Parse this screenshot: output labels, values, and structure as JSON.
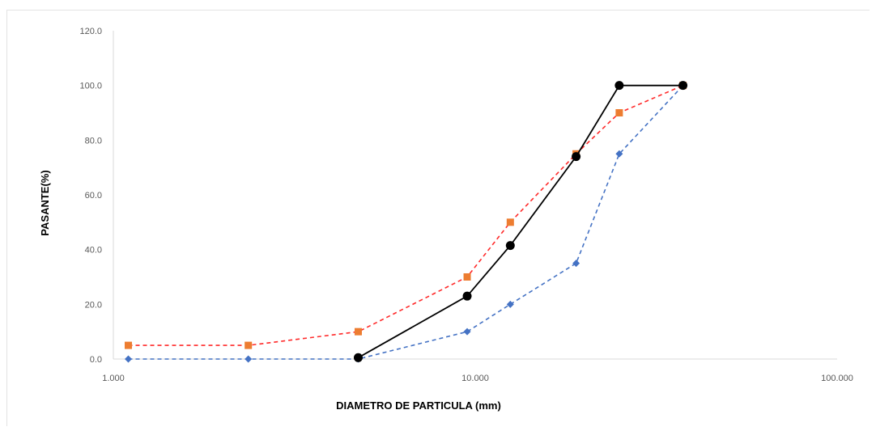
{
  "chart_data": {
    "type": "scatter",
    "title": "",
    "xlabel": "DIAMETRO DE PARTICULA (mm)",
    "ylabel": "PASANTE(%)",
    "xscale": "log",
    "xlim": [
      1.0,
      100.0
    ],
    "ylim": [
      0,
      120
    ],
    "x_ticks": [
      1.0,
      10.0,
      100.0
    ],
    "x_tick_labels": [
      "1.000",
      "10.000",
      "100.000"
    ],
    "y_ticks": [
      0,
      20,
      40,
      60,
      80,
      100,
      120
    ],
    "y_tick_labels": [
      "0.0",
      "20.0",
      "40.0",
      "60.0",
      "80.0",
      "100.0",
      "120.0"
    ],
    "grid": false,
    "legend": "none",
    "series": [
      {
        "x": [
          1.1,
          2.36,
          4.75,
          9.5,
          12.5,
          19.0,
          25.0,
          37.5
        ],
        "y": [
          5,
          5,
          10,
          30,
          50,
          75,
          90,
          100
        ],
        "line_color": "#ff2a2a",
        "line_style": "dashed",
        "marker": "square",
        "marker_color": "#ed7d31"
      },
      {
        "x": [
          1.1,
          2.36,
          4.75,
          9.5,
          12.5,
          19.0,
          25.0,
          37.5
        ],
        "y": [
          0,
          0,
          0,
          10,
          20,
          35,
          75,
          100
        ],
        "line_color": "#4472c4",
        "line_style": "dashed",
        "marker": "diamond",
        "marker_color": "#4472c4"
      },
      {
        "x": [
          4.75,
          9.5,
          12.5,
          19.0,
          25.0,
          37.5
        ],
        "y": [
          0.5,
          23,
          41.5,
          74,
          100,
          100
        ],
        "line_color": "#000000",
        "line_style": "solid",
        "marker": "circle",
        "marker_color": "#000000"
      }
    ]
  }
}
